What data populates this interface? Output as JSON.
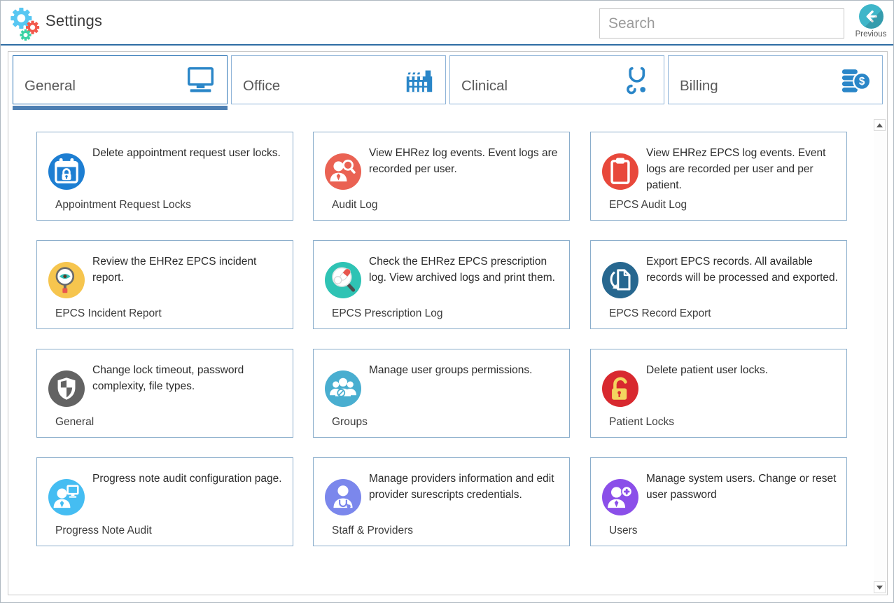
{
  "header": {
    "title": "Settings",
    "logo_icon": "settings-gears-icon",
    "search": {
      "placeholder": "Search",
      "value": ""
    },
    "previous": {
      "label": "Previous",
      "icon": "back-arrow-icon",
      "color": "#3eb6c9"
    }
  },
  "tabs": [
    {
      "label": "General",
      "icon": "monitor-icon",
      "active": true
    },
    {
      "label": "Office",
      "icon": "factory-icon",
      "active": false
    },
    {
      "label": "Clinical",
      "icon": "stethoscope-icon",
      "active": false
    },
    {
      "label": "Billing",
      "icon": "billing-icon",
      "active": false
    }
  ],
  "cards": [
    {
      "title": "Appointment Request Locks",
      "description": "Delete appointment request user locks.",
      "icon": "calendar-lock-icon",
      "color": "#1d7ed2"
    },
    {
      "title": "Audit Log",
      "description": "View EHRez log events. Event logs are recorded per user.",
      "icon": "user-magnifier-icon",
      "color": "#ea6253"
    },
    {
      "title": "EPCS Audit Log",
      "description": "View EHRez EPCS log events. Event logs are recorded per user and per patient.",
      "icon": "clipboard-icon",
      "color": "#e8483b"
    },
    {
      "title": "EPCS Incident Report",
      "description": "Review the EHRez EPCS incident report.",
      "icon": "magnifier-eye-icon",
      "color": "#f6c54e"
    },
    {
      "title": "EPCS Prescription Log",
      "description": "Check the EHRez EPCS prescription log. View archived logs and print them.",
      "icon": "magnifier-pills-icon",
      "color": "#2fc3b4"
    },
    {
      "title": "EPCS Record Export",
      "description": "Export EPCS records. All available records will be processed and exported.",
      "icon": "document-export-icon",
      "color": "#27678f"
    },
    {
      "title": "General",
      "description": "Change lock timeout, password complexity, file types.",
      "icon": "shield-icon",
      "color": "#636363"
    },
    {
      "title": "Groups",
      "description": "Manage user groups permissions.",
      "icon": "user-group-icon",
      "color": "#49aed0"
    },
    {
      "title": "Patient Locks",
      "description": "Delete patient user locks.",
      "icon": "open-lock-icon",
      "color": "#d8292f"
    },
    {
      "title": "Progress Note Audit",
      "description": "Progress note audit configuration page.",
      "icon": "user-monitor-icon",
      "color": "#45bdf2"
    },
    {
      "title": "Staff & Providers",
      "description": "Manage providers information and edit provider surescripts credentials.",
      "icon": "doctor-icon",
      "color": "#7b87ec"
    },
    {
      "title": "Users",
      "description": "Manage system users. Change or reset user password",
      "icon": "user-plus-icon",
      "color": "#8b4fe9"
    }
  ],
  "scrollbar": {
    "up_icon": "scroll-up-arrow-icon",
    "down_icon": "scroll-down-arrow-icon"
  },
  "colors": {
    "header_divider": "#2e6da4",
    "tab_border": "#8fb4d8",
    "active_tab_border": "#2e75b6",
    "active_tab_underline": "#4d7fb3",
    "card_border": "#8aadcb",
    "tab_icon": "#2a86c8"
  }
}
